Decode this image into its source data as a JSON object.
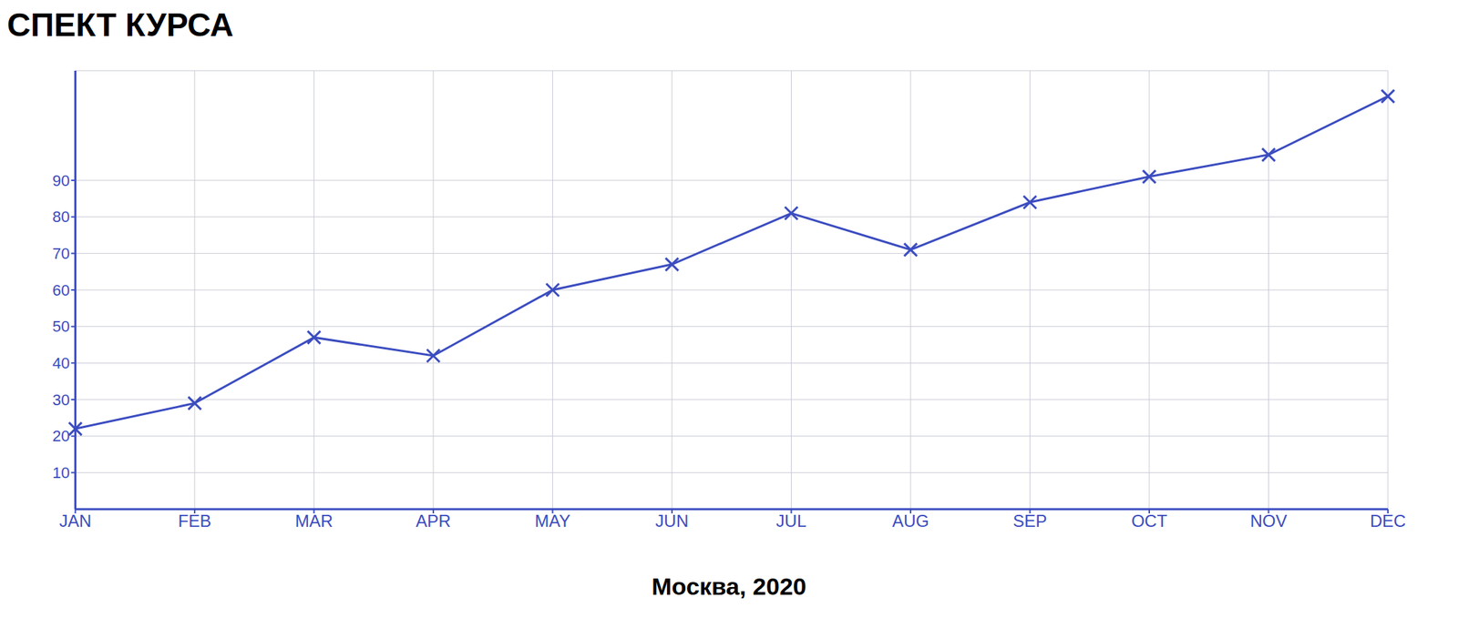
{
  "chart_data": {
    "type": "line",
    "title": "СПЕКТ КУРСА",
    "subtitle": "Москва, 2020",
    "categories": [
      "JAN",
      "FEB",
      "MAR",
      "APR",
      "MAY",
      "JUN",
      "JUL",
      "AUG",
      "SEP",
      "OCT",
      "NOV",
      "DEC"
    ],
    "values": [
      22,
      29,
      47,
      42,
      60,
      67,
      81,
      71,
      84,
      91,
      97,
      113
    ],
    "color": "#3b4cc0",
    "ylim": [
      0,
      120
    ],
    "yticks": [
      10,
      20,
      30,
      40,
      50,
      60,
      70,
      80,
      90
    ],
    "grid": true,
    "marker": "x",
    "line_style": "solid"
  }
}
